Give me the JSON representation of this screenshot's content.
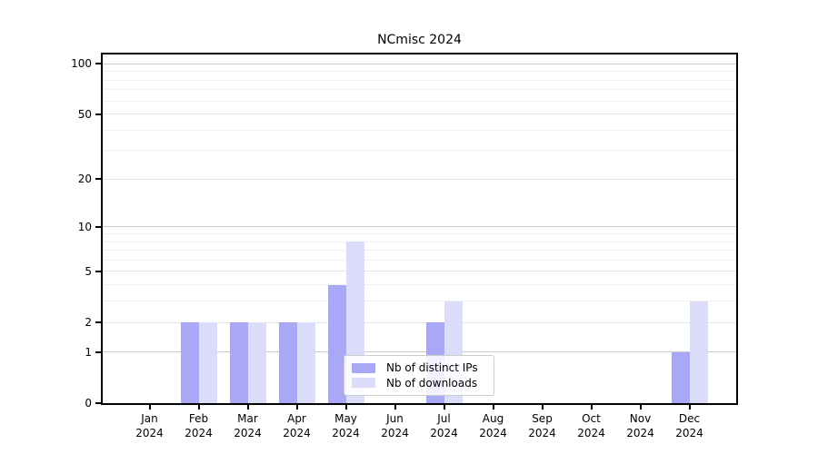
{
  "chart_data": {
    "type": "bar",
    "title": "NCmisc 2024",
    "x_year": "2024",
    "categories": [
      "Jan",
      "Feb",
      "Mar",
      "Apr",
      "May",
      "Jun",
      "Jul",
      "Aug",
      "Sep",
      "Oct",
      "Nov",
      "Dec"
    ],
    "series": [
      {
        "name": "Nb of distinct IPs",
        "color": "#a8a8f7",
        "values": [
          0,
          2,
          2,
          2,
          4,
          0,
          2,
          0,
          0,
          0,
          0,
          1
        ]
      },
      {
        "name": "Nb of downloads",
        "color": "#dbdbfa",
        "values": [
          0,
          2,
          2,
          2,
          8,
          0,
          3,
          0,
          0,
          0,
          0,
          3
        ]
      }
    ],
    "yscale": "log1p",
    "ylim": [
      0,
      113
    ],
    "yticks": [
      0,
      1,
      2,
      5,
      10,
      20,
      50,
      100
    ],
    "yticks_decade": [
      1,
      10,
      100
    ],
    "yticks_minor": [
      3,
      4,
      6,
      7,
      8,
      9,
      30,
      40,
      60,
      70,
      80,
      90
    ],
    "grid": true,
    "legend_position": "lower center",
    "xlabel": "",
    "ylabel": ""
  }
}
